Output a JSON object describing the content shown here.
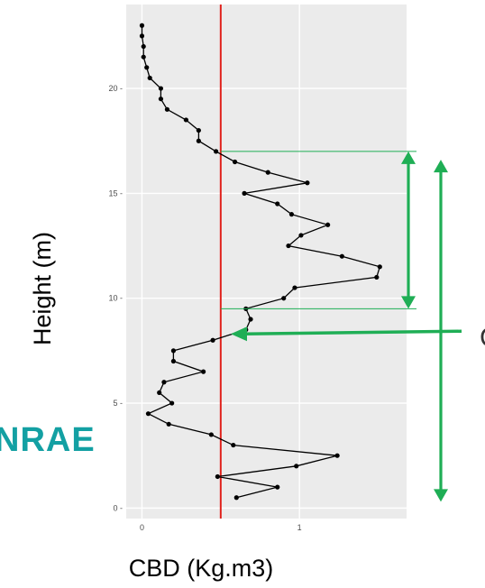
{
  "colors": {
    "panel_bg": "#ebebeb",
    "grid_major": "#ffffff",
    "line": "#000000",
    "threshold": "#e0221c",
    "arrow": "#1fae55",
    "logo": "#13a0a3"
  },
  "logo": {
    "text": "NRAE"
  },
  "right_edge_text": "C",
  "chart_data": {
    "type": "line",
    "title": "",
    "xlabel": "CBD (Kg.m3)",
    "ylabel": "Height (m)",
    "xlim": [
      -0.1,
      1.68
    ],
    "ylim": [
      -0.5,
      24
    ],
    "xticks": [
      0,
      1
    ],
    "yticks": [
      0,
      5,
      10,
      15,
      20
    ],
    "xtick_labels": [
      "0",
      "1"
    ],
    "ytick_labels": [
      "0 -",
      "5 -",
      "10 -",
      "15 -",
      "20 -"
    ],
    "grid": true,
    "threshold_x": 0.5,
    "series": [
      {
        "points": [
          [
            0.6,
            0.5
          ],
          [
            0.86,
            1.0
          ],
          [
            0.48,
            1.5
          ],
          [
            0.98,
            2.0
          ],
          [
            1.24,
            2.5
          ],
          [
            0.58,
            3.0
          ],
          [
            0.44,
            3.5
          ],
          [
            0.17,
            4.0
          ],
          [
            0.04,
            4.5
          ],
          [
            0.19,
            5.0
          ],
          [
            0.11,
            5.5
          ],
          [
            0.14,
            6.0
          ],
          [
            0.39,
            6.5
          ],
          [
            0.2,
            7.0
          ],
          [
            0.2,
            7.5
          ],
          [
            0.45,
            8.0
          ],
          [
            0.66,
            8.5
          ],
          [
            0.69,
            9.0
          ],
          [
            0.66,
            9.5
          ],
          [
            0.9,
            10.0
          ],
          [
            0.97,
            10.5
          ],
          [
            1.49,
            11.0
          ],
          [
            1.51,
            11.5
          ],
          [
            1.27,
            12.0
          ],
          [
            0.93,
            12.5
          ],
          [
            1.01,
            13.0
          ],
          [
            1.18,
            13.5
          ],
          [
            0.95,
            14.0
          ],
          [
            0.86,
            14.5
          ],
          [
            0.65,
            15.0
          ],
          [
            1.05,
            15.5
          ],
          [
            0.8,
            16.0
          ],
          [
            0.59,
            16.5
          ],
          [
            0.47,
            17.0
          ],
          [
            0.36,
            17.5
          ],
          [
            0.36,
            18.0
          ],
          [
            0.28,
            18.5
          ],
          [
            0.16,
            19.0
          ],
          [
            0.12,
            19.5
          ],
          [
            0.12,
            20.0
          ],
          [
            0.05,
            20.5
          ],
          [
            0.03,
            21.0
          ],
          [
            0.01,
            21.5
          ],
          [
            0.01,
            22.0
          ],
          [
            0.0,
            22.5
          ],
          [
            0.0,
            23.0
          ]
        ]
      }
    ],
    "annotations": {
      "band_lines_y": [
        17.0,
        9.5
      ],
      "double_arrows": [
        {
          "y_top": 17.0,
          "y_bottom": 9.5
        },
        {
          "y_top": 16.6,
          "y_bottom": 0.3
        }
      ],
      "pointer_arrow_y": 8.3
    }
  }
}
